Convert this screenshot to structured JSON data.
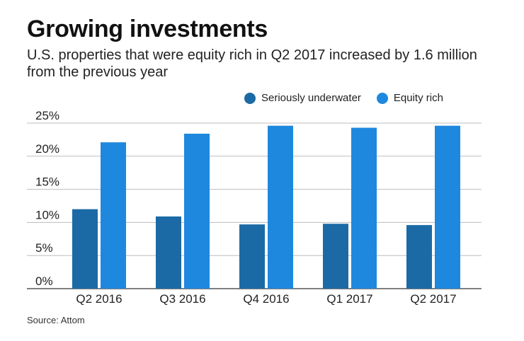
{
  "title": "Growing investments",
  "subtitle": "U.S. properties that were equity rich in Q2 2017 increased by 1.6 million from the previous year",
  "source": "Source: Attom",
  "colors": {
    "underwater": "#1b6aa5",
    "equity": "#1e88df",
    "grid": "#bdbdbd",
    "axis": "#555555"
  },
  "chart_data": {
    "type": "bar",
    "title": "Growing investments",
    "xlabel": "",
    "ylabel": "",
    "categories": [
      "Q2 2016",
      "Q3 2016",
      "Q4 2016",
      "Q1 2017",
      "Q2 2017"
    ],
    "series": [
      {
        "name": "Seriously underwater",
        "values": [
          12.0,
          10.9,
          9.7,
          9.8,
          9.6
        ]
      },
      {
        "name": "Equity rich",
        "values": [
          22.1,
          23.4,
          24.6,
          24.3,
          24.6
        ]
      }
    ],
    "yticks": [
      "0%",
      "5%",
      "10%",
      "15%",
      "20%",
      "25%"
    ],
    "ylim": [
      0,
      25
    ],
    "legend_position": "top-right",
    "grid": true
  }
}
